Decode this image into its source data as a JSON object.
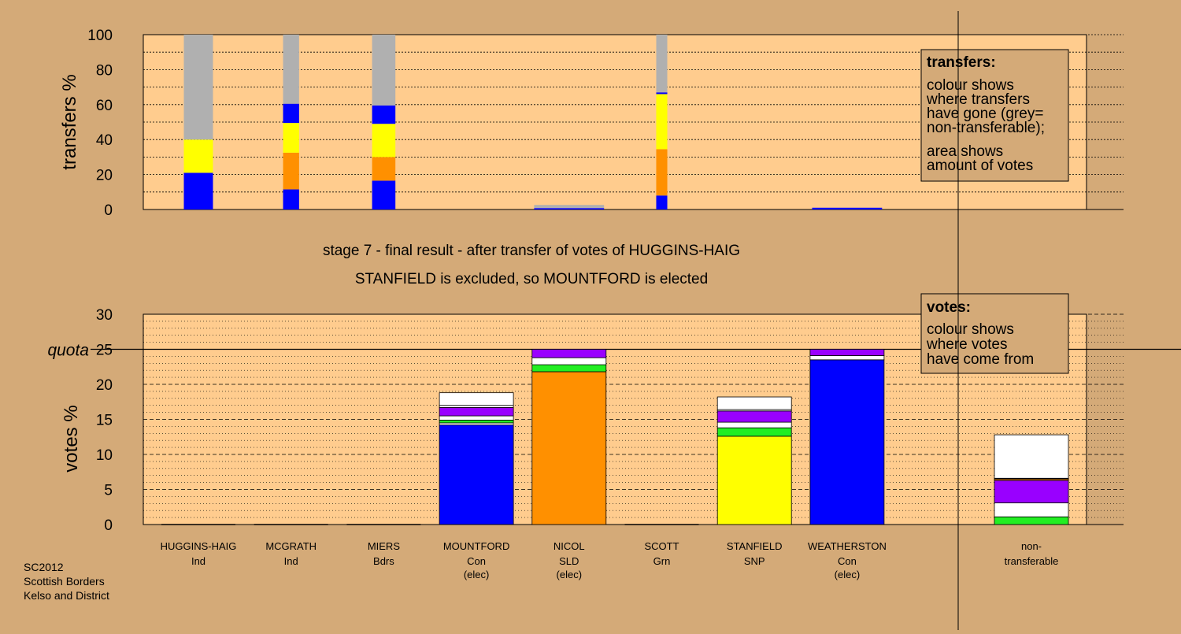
{
  "colors": {
    "background": "#d4aa78",
    "plot_bg": "#ffcc8e",
    "con": "#0000ff",
    "sld": "#ff9000",
    "snp": "#ffff00",
    "grn": "#22ee22",
    "bdrs": "#9900ff",
    "ind": "#ffffff",
    "nontransferable": "#b0b0b0"
  },
  "chart_data": [
    {
      "type": "bar",
      "stacked": true,
      "title": "",
      "ylabel": "transfers %",
      "ylim": [
        0,
        100
      ],
      "yticks": [
        "0",
        "20",
        "40",
        "60",
        "80",
        "100"
      ],
      "grid": true,
      "legend_box": {
        "title": "transfers:",
        "lines": [
          "colour shows",
          "where transfers",
          "have gone (grey=",
          "non-transferable);",
          "area shows",
          "amount of votes"
        ]
      },
      "bars": [
        {
          "candidate": "HUGGINS-HAIG",
          "width_share": 1.0,
          "segments": [
            {
              "party": "con",
              "value": 21
            },
            {
              "party": "snp",
              "value": 19
            },
            {
              "party": "nontransferable",
              "value": 60
            }
          ]
        },
        {
          "candidate": "MCGRATH",
          "width_share": 0.55,
          "segments": [
            {
              "party": "con",
              "value": 11.5
            },
            {
              "party": "sld",
              "value": 21
            },
            {
              "party": "snp",
              "value": 17
            },
            {
              "party": "con",
              "value": 11
            },
            {
              "party": "nontransferable",
              "value": 39.5
            }
          ]
        },
        {
          "candidate": "MIERS",
          "width_share": 0.8,
          "segments": [
            {
              "party": "con",
              "value": 16.5
            },
            {
              "party": "sld",
              "value": 13.5
            },
            {
              "party": "snp",
              "value": 19
            },
            {
              "party": "con",
              "value": 10.5
            },
            {
              "party": "nontransferable",
              "value": 40.5
            }
          ]
        },
        {
          "candidate": "NICOL",
          "width_share": 2.4,
          "segments": [
            {
              "party": "con",
              "value": 0.8
            },
            {
              "party": "nontransferable",
              "value": 1.8
            }
          ]
        },
        {
          "candidate": "SCOTT",
          "width_share": 0.38,
          "segments": [
            {
              "party": "con",
              "value": 8
            },
            {
              "party": "sld",
              "value": 26.5
            },
            {
              "party": "snp",
              "value": 31.5
            },
            {
              "party": "con",
              "value": 1
            },
            {
              "party": "nontransferable",
              "value": 33
            }
          ]
        },
        {
          "candidate": "WEATHERSTON",
          "width_share": 2.4,
          "segments": [
            {
              "party": "con",
              "value": 1
            }
          ]
        }
      ]
    },
    {
      "type": "bar",
      "stacked": true,
      "title": "stage 7 - final result - after transfer of votes of HUGGINS-HAIG",
      "subtitle": "STANFIELD is excluded, so MOUNTFORD is elected",
      "ylabel": "votes %",
      "ylim": [
        0,
        30
      ],
      "yticks": [
        "0",
        "5",
        "10",
        "15",
        "20",
        "25",
        "30"
      ],
      "quota": 25,
      "quota_label": "quota",
      "grid": true,
      "legend_box": {
        "title": "votes:",
        "lines": [
          "colour shows",
          "where votes",
          "have come from"
        ]
      },
      "categories": [
        {
          "name": "HUGGINS-HAIG",
          "party": "Ind",
          "note": ""
        },
        {
          "name": "MCGRATH",
          "party": "Ind",
          "note": ""
        },
        {
          "name": "MIERS",
          "party": "Bdrs",
          "note": ""
        },
        {
          "name": "MOUNTFORD",
          "party": "Con",
          "note": "(elec)"
        },
        {
          "name": "NICOL",
          "party": "SLD",
          "note": "(elec)"
        },
        {
          "name": "SCOTT",
          "party": "Grn",
          "note": ""
        },
        {
          "name": "STANFIELD",
          "party": "SNP",
          "note": ""
        },
        {
          "name": "WEATHERSTON",
          "party": "Con",
          "note": "(elec)"
        }
      ],
      "extra_category": {
        "name": "non-",
        "party": "transferable",
        "note": ""
      },
      "stacks": [
        [],
        [],
        [],
        [
          {
            "party": "con",
            "value": 14.2
          },
          {
            "party": "ind",
            "value": 0.3
          },
          {
            "party": "grn",
            "value": 0.4
          },
          {
            "party": "ind",
            "value": 0.6
          },
          {
            "party": "bdrs",
            "value": 1.2
          },
          {
            "party": "ind",
            "value": 0.3
          },
          {
            "party": "ind",
            "value": 1.8
          }
        ],
        [
          {
            "party": "sld",
            "value": 21.8
          },
          {
            "party": "grn",
            "value": 1.0
          },
          {
            "party": "ind",
            "value": 1.0
          },
          {
            "party": "bdrs",
            "value": 1.2
          }
        ],
        [],
        [
          {
            "party": "snp",
            "value": 12.6
          },
          {
            "party": "grn",
            "value": 1.2
          },
          {
            "party": "ind",
            "value": 0.8
          },
          {
            "party": "bdrs",
            "value": 1.6
          },
          {
            "party": "ind",
            "value": 0.2
          },
          {
            "party": "ind",
            "value": 1.8
          }
        ],
        [
          {
            "party": "con",
            "value": 23.5
          },
          {
            "party": "ind",
            "value": 0.6
          },
          {
            "party": "bdrs",
            "value": 0.9
          }
        ]
      ],
      "nontransferable_stack": [
        {
          "party": "grn",
          "value": 1.1
        },
        {
          "party": "ind",
          "value": 2.0
        },
        {
          "party": "bdrs",
          "value": 3.2
        },
        {
          "party": "sld",
          "value": 0.2
        },
        {
          "party": "con",
          "value": 0.1
        },
        {
          "party": "ind",
          "value": 6.2
        }
      ]
    }
  ],
  "footer": {
    "line1": "SC2012",
    "line2": "Scottish Borders",
    "line3": "Kelso and District"
  }
}
